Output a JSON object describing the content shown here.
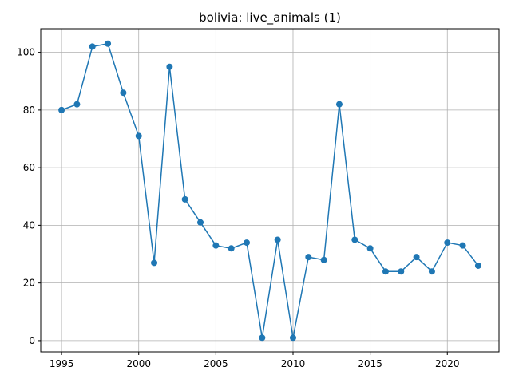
{
  "chart_data": {
    "type": "line",
    "title": "bolivia: live_animals (1)",
    "xlabel": "",
    "ylabel": "",
    "xlim": [
      1993.65,
      2023.35
    ],
    "ylim": [
      -3.9,
      108.2
    ],
    "x_ticks": [
      1995,
      2000,
      2005,
      2010,
      2015,
      2020
    ],
    "y_ticks": [
      0,
      20,
      40,
      60,
      80,
      100
    ],
    "grid": true,
    "color": "#1f77b4",
    "series": [
      {
        "x": [
          1995,
          1996,
          1997,
          1998,
          1999,
          2000,
          2001,
          2002,
          2003,
          2004,
          2005,
          2006,
          2007,
          2008,
          2009,
          2010,
          2011,
          2012,
          2013,
          2014,
          2015,
          2016,
          2017,
          2018,
          2019,
          2020,
          2021,
          2022
        ],
        "values": [
          80,
          82,
          102,
          103,
          86,
          71,
          27,
          95,
          49,
          41,
          33,
          32,
          34,
          1,
          35,
          1,
          29,
          28,
          82,
          35,
          32,
          24,
          24,
          29,
          24,
          34,
          33,
          26
        ]
      }
    ]
  }
}
